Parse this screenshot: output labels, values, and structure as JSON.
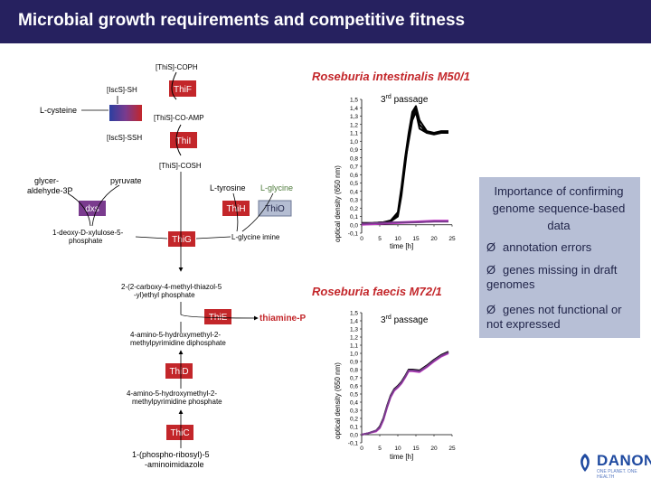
{
  "header": {
    "title": "Microbial growth requirements and competitive fitness"
  },
  "colors": {
    "header_bg": "#26215f",
    "enzyme_red": "#c3262a",
    "enzyme_purple": "#7a3b8e",
    "magenta": "#c53cc8",
    "black": "#000000",
    "note_bg": "#b7bfd6"
  },
  "pathway": {
    "compounds": {
      "this_coph": "[ThiS]-COPH",
      "iscs_sh": "[IscS]-SH",
      "l_cysteine": "L-cysteine",
      "this_co_amp": "[ThiS]-CO-AMP",
      "iscs_ssh": "[IscS]-SSH",
      "this_cosh": "[ThiS]-COSH",
      "glyceraldehyde_line1": "glycer-",
      "glyceraldehyde_line2": "aldehyde-3P",
      "pyruvate": "pyruvate",
      "l_tyrosine": "L-tyrosine",
      "l_glycine": "L-glycine",
      "deoxy_line1": "1-deoxy-D-xylulose-5-",
      "deoxy_line2": "phosphate",
      "glycine_imine": "L-glycine imine",
      "carboxy_line1": "2-(2-carboxy-4-methyl-thiazol-5",
      "carboxy_line2": "-yl)ethyl phosphate",
      "thiamine_p": "thiamine-P",
      "hmp_pp_line1": "4-amino-5-hydroxymethyl-2-",
      "hmp_pp_line2": "methylpyrimidine diphosphate",
      "hmp_p_line1": "4-amino-5-hydroxymethyl-2-",
      "hmp_p_line2": "methylpyrimidine phosphate",
      "air_line1": "1-(phospho-ribosyl)-5",
      "air_line2": "-aminoimidazole"
    },
    "enzymes": {
      "thif": "ThiF",
      "thii": "ThiI",
      "dxs": "dxs",
      "thih": "ThiH",
      "thio": "ThiO",
      "thig": "ThiG",
      "thie": "ThiE",
      "thid": "ThiD",
      "thic": "ThiC"
    }
  },
  "charts": {
    "top_title": "Roseburia intestinalis M50/1",
    "bottom_title": "Roseburia faecis M72/1",
    "passage_label_base": "3",
    "passage_label_sup": "rd",
    "passage_label_rest": " passage",
    "ylabel": "optical density (650 nm)",
    "xlabel": "time [h]"
  },
  "chart_data": [
    {
      "type": "line",
      "title": "Roseburia intestinalis M50/1",
      "xlabel": "time [h]",
      "ylabel": "optical density (650 nm)",
      "xlim": [
        0,
        25
      ],
      "ylim": [
        -0.1,
        1.5
      ],
      "x_ticks": [
        "0",
        "5",
        "10",
        "15",
        "20",
        "25"
      ],
      "y_ticks": [
        "-0,1",
        "0,0",
        "0,1",
        "0,2",
        "0,3",
        "0,4",
        "0,5",
        "0,6",
        "0,7",
        "0,8",
        "0,9",
        "1,0",
        "1,1",
        "1,2",
        "1,3",
        "1,4",
        "1,5"
      ],
      "series": [
        {
          "color": "#000000",
          "x": [
            0,
            3,
            6,
            8,
            10,
            11,
            12,
            13,
            14,
            15,
            16,
            18,
            20,
            22,
            24
          ],
          "y": [
            0.02,
            0.02,
            0.03,
            0.04,
            0.1,
            0.35,
            0.7,
            1.05,
            1.3,
            1.4,
            1.2,
            1.1,
            1.1,
            1.12,
            1.12
          ]
        },
        {
          "color": "#000000",
          "x": [
            0,
            3,
            6,
            8,
            10,
            11,
            12,
            13,
            14,
            15,
            16,
            18,
            20,
            22,
            24
          ],
          "y": [
            0.02,
            0.02,
            0.03,
            0.05,
            0.15,
            0.45,
            0.8,
            1.1,
            1.35,
            1.42,
            1.25,
            1.12,
            1.1,
            1.1,
            1.1
          ]
        },
        {
          "color": "#000000",
          "x": [
            0,
            3,
            6,
            8,
            10,
            11,
            12,
            13,
            14,
            15,
            16,
            18,
            20,
            22,
            24
          ],
          "y": [
            0.02,
            0.02,
            0.03,
            0.05,
            0.12,
            0.4,
            0.75,
            1.0,
            1.25,
            1.35,
            1.15,
            1.1,
            1.08,
            1.1,
            1.1
          ]
        },
        {
          "color": "#c53cc8",
          "x": [
            0,
            5,
            10,
            15,
            20,
            24
          ],
          "y": [
            0.01,
            0.02,
            0.03,
            0.04,
            0.05,
            0.05
          ]
        },
        {
          "color": "#c53cc8",
          "x": [
            0,
            5,
            10,
            15,
            20,
            24
          ],
          "y": [
            0.0,
            0.01,
            0.02,
            0.03,
            0.04,
            0.04
          ]
        },
        {
          "color": "#7a3b8e",
          "x": [
            0,
            5,
            10,
            15,
            20,
            24
          ],
          "y": [
            0.01,
            0.02,
            0.03,
            0.03,
            0.04,
            0.04
          ]
        }
      ]
    },
    {
      "type": "line",
      "title": "Roseburia faecis M72/1",
      "xlabel": "time [h]",
      "ylabel": "optical density (650 nm)",
      "xlim": [
        0,
        25
      ],
      "ylim": [
        -0.1,
        1.5
      ],
      "x_ticks": [
        "0",
        "5",
        "10",
        "15",
        "20",
        "25"
      ],
      "y_ticks": [
        "-0,1",
        "0,0",
        "0,1",
        "0,2",
        "0,3",
        "0,4",
        "0,5",
        "0,6",
        "0,7",
        "0,8",
        "0,9",
        "1,0",
        "1,1",
        "1,2",
        "1,3",
        "1,4",
        "1,5"
      ],
      "series": [
        {
          "color": "#000000",
          "x": [
            0,
            2,
            4,
            5,
            6,
            7,
            8,
            9,
            10,
            11,
            12,
            13,
            14,
            16,
            18,
            20,
            22,
            24
          ],
          "y": [
            0.0,
            0.02,
            0.05,
            0.1,
            0.2,
            0.35,
            0.48,
            0.56,
            0.6,
            0.65,
            0.72,
            0.8,
            0.8,
            0.79,
            0.85,
            0.92,
            0.98,
            1.02
          ]
        },
        {
          "color": "#c53cc8",
          "x": [
            0,
            2,
            4,
            5,
            6,
            7,
            8,
            9,
            10,
            11,
            12,
            13,
            14,
            16,
            18,
            20,
            22,
            24
          ],
          "y": [
            0.0,
            0.02,
            0.04,
            0.08,
            0.18,
            0.33,
            0.46,
            0.54,
            0.58,
            0.63,
            0.7,
            0.78,
            0.78,
            0.77,
            0.83,
            0.9,
            0.96,
            1.0
          ]
        },
        {
          "color": "#7a3b8e",
          "x": [
            0,
            2,
            4,
            5,
            6,
            7,
            8,
            9,
            10,
            11,
            12,
            13,
            14,
            16,
            18,
            20,
            22,
            24
          ],
          "y": [
            0.0,
            0.02,
            0.05,
            0.09,
            0.19,
            0.34,
            0.47,
            0.55,
            0.59,
            0.64,
            0.71,
            0.79,
            0.79,
            0.78,
            0.84,
            0.91,
            0.97,
            1.01
          ]
        }
      ]
    }
  ],
  "note": {
    "title": "Importance of confirming genome sequence-based data",
    "items": [
      "annotation errors",
      "genes missing in draft genomes",
      "genes not functional or not expressed"
    ],
    "bullet": "Ø"
  },
  "logo": {
    "word": "DANONE",
    "tagline": "ONE PLANET. ONE HEALTH"
  }
}
